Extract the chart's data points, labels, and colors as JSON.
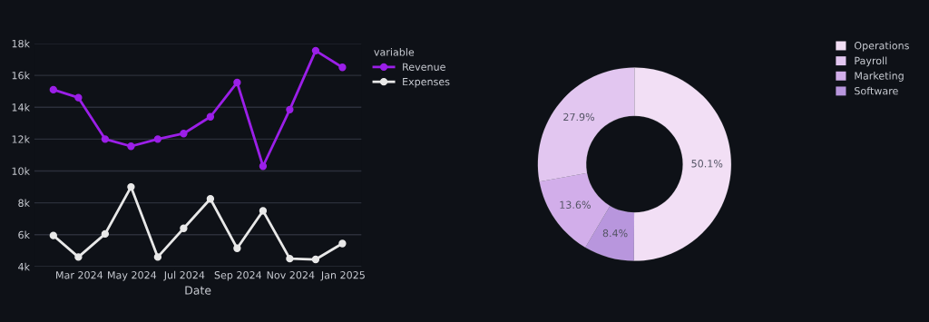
{
  "chart_data": [
    {
      "type": "line",
      "xlabel": "Date",
      "legend_title": "variable",
      "legend": "top right",
      "marker": "circle",
      "line_style": "solid",
      "grid": "y",
      "x": [
        "2024-01-31",
        "2024-02-29",
        "2024-03-31",
        "2024-04-30",
        "2024-05-31",
        "2024-06-30",
        "2024-07-31",
        "2024-08-31",
        "2024-09-30",
        "2024-10-31",
        "2024-11-30",
        "2024-12-31"
      ],
      "series": [
        {
          "name": "Revenue",
          "color": "#9b1fe8",
          "values": [
            15100,
            14600,
            12000,
            11550,
            12000,
            12350,
            13400,
            15550,
            10300,
            13850,
            17550,
            16500
          ]
        },
        {
          "name": "Expenses",
          "color": "#e8e8e8",
          "values": [
            5950,
            4600,
            6050,
            9000,
            4600,
            6400,
            8250,
            5150,
            7500,
            4500,
            4450,
            5450
          ]
        }
      ],
      "xlim": [
        "2024-01-09",
        "2025-01-22"
      ],
      "xticks": [
        {
          "value": "2024-03-01",
          "label": "Mar 2024"
        },
        {
          "value": "2024-05-01",
          "label": "May 2024"
        },
        {
          "value": "2024-07-01",
          "label": "Jul 2024"
        },
        {
          "value": "2024-09-01",
          "label": "Sep 2024"
        },
        {
          "value": "2024-11-01",
          "label": "Nov 2024"
        },
        {
          "value": "2025-01-01",
          "label": "Jan 2025"
        }
      ],
      "ylim": [
        4000,
        18000
      ],
      "yticks": [
        {
          "value": 4000,
          "label": "4k"
        },
        {
          "value": 6000,
          "label": "6k"
        },
        {
          "value": 8000,
          "label": "8k"
        },
        {
          "value": 10000,
          "label": "10k"
        },
        {
          "value": 12000,
          "label": "12k"
        },
        {
          "value": 14000,
          "label": "14k"
        },
        {
          "value": 16000,
          "label": "16k"
        },
        {
          "value": 18000,
          "label": "18k"
        }
      ]
    },
    {
      "type": "donut",
      "legend": "top right",
      "categories": [
        "Operations",
        "Payroll",
        "Marketing",
        "Software"
      ],
      "values": [
        50.1,
        27.9,
        13.6,
        8.4
      ],
      "colors": [
        "#f2dff5",
        "#e2c6f0",
        "#d2aeea",
        "#b896dd"
      ],
      "value_labels": [
        "50.1%",
        "27.9%",
        "13.6%",
        "8.4%"
      ]
    }
  ]
}
